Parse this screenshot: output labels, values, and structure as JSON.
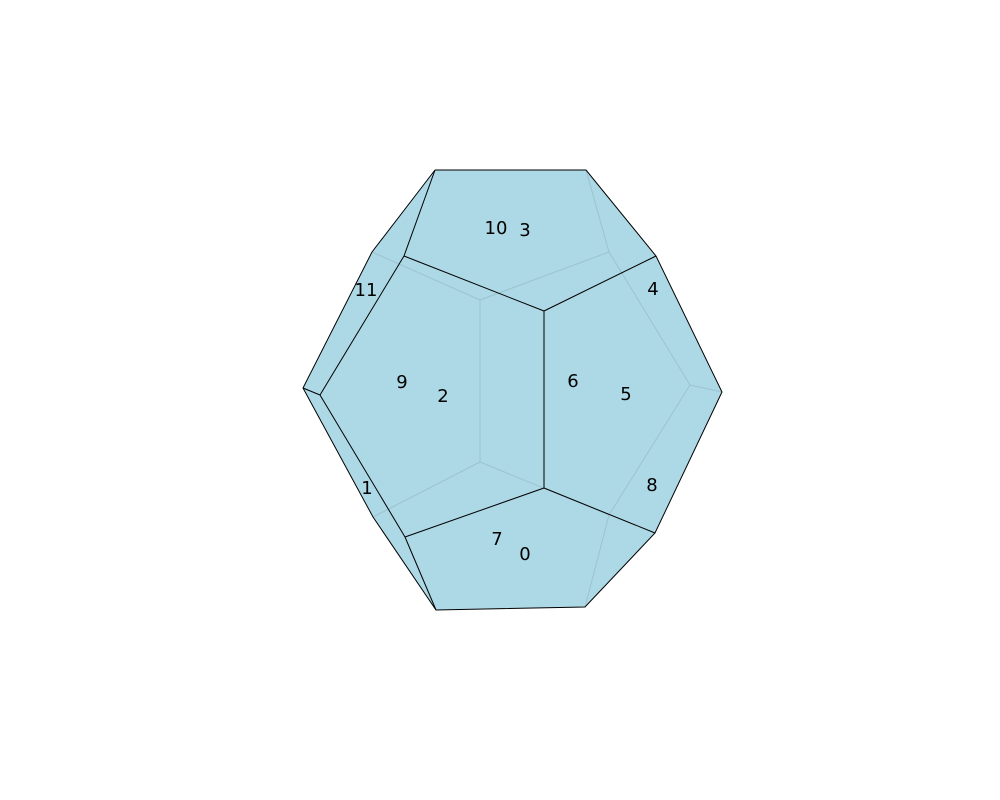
{
  "colors": {
    "face_fill": "#add8e6",
    "edge_visible": "#000000",
    "edge_hidden": "#9cc3cf"
  },
  "faces": [
    {
      "id": "face-0",
      "label": "0"
    },
    {
      "id": "face-1",
      "label": "1"
    },
    {
      "id": "face-2",
      "label": "2"
    },
    {
      "id": "face-3",
      "label": "3"
    },
    {
      "id": "face-4",
      "label": "4"
    },
    {
      "id": "face-5",
      "label": "5"
    },
    {
      "id": "face-6",
      "label": "6"
    },
    {
      "id": "face-7",
      "label": "7"
    },
    {
      "id": "face-8",
      "label": "8"
    },
    {
      "id": "face-9",
      "label": "9"
    },
    {
      "id": "face-10",
      "label": "10"
    },
    {
      "id": "face-11",
      "label": "11"
    }
  ]
}
